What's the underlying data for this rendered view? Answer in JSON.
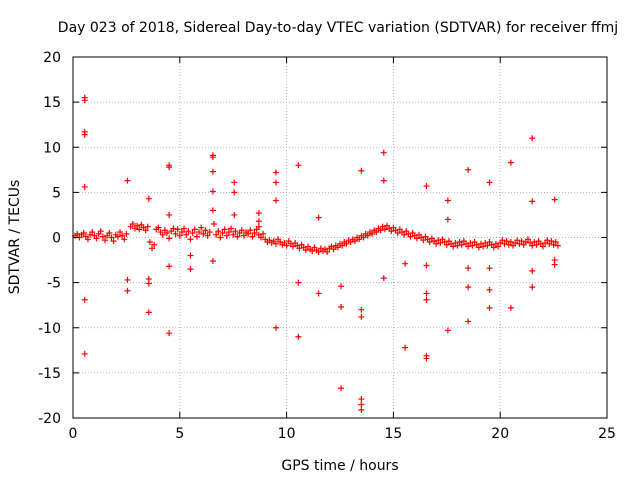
{
  "chart_data": {
    "type": "scatter",
    "title": "Day 023 of 2018, Sidereal Day-to-day VTEC variation (SDTVAR) for receiver ffmj",
    "xlabel": "GPS time / hours",
    "ylabel": "SDTVAR / TECUs",
    "xlim": [
      0,
      25
    ],
    "ylim": [
      -20,
      20
    ],
    "xticks": [
      0,
      5,
      10,
      15,
      20,
      25
    ],
    "xtick_labels": [
      "0",
      "5",
      "10",
      "15",
      "20",
      "25"
    ],
    "yticks": [
      -20,
      -15,
      -10,
      -5,
      0,
      5,
      10,
      15,
      20
    ],
    "ytick_labels": [
      "-20",
      "-15",
      "-10",
      "-5",
      "0",
      "5",
      "10",
      "15",
      "20"
    ],
    "grid": true,
    "marker": "plus",
    "marker_color": "#ff0000",
    "series": [
      {
        "name": "SDTVAR",
        "points": [
          [
            0.1,
            0.2
          ],
          [
            0.2,
            0.4
          ],
          [
            0.3,
            0.0
          ],
          [
            0.4,
            0.3
          ],
          [
            0.5,
            0.5
          ],
          [
            0.6,
            0.1
          ],
          [
            0.7,
            -0.2
          ],
          [
            0.8,
            0.3
          ],
          [
            0.9,
            0.6
          ],
          [
            1.0,
            0.2
          ],
          [
            1.1,
            -0.1
          ],
          [
            1.2,
            0.4
          ],
          [
            1.3,
            0.7
          ],
          [
            1.4,
            0.1
          ],
          [
            1.5,
            -0.3
          ],
          [
            1.6,
            0.2
          ],
          [
            1.7,
            0.5
          ],
          [
            1.8,
            0.0
          ],
          [
            1.9,
            -0.4
          ],
          [
            2.0,
            0.3
          ],
          [
            2.1,
            0.1
          ],
          [
            2.2,
            0.6
          ],
          [
            2.3,
            0.2
          ],
          [
            2.4,
            -0.2
          ],
          [
            2.5,
            0.4
          ],
          [
            2.7,
            1.2
          ],
          [
            2.8,
            1.5
          ],
          [
            2.9,
            1.0
          ],
          [
            3.0,
            1.3
          ],
          [
            3.1,
            0.9
          ],
          [
            3.2,
            1.4
          ],
          [
            3.3,
            1.1
          ],
          [
            3.4,
            0.8
          ],
          [
            3.5,
            1.2
          ],
          [
            3.6,
            -0.5
          ],
          [
            3.7,
            -1.2
          ],
          [
            3.8,
            -0.8
          ],
          [
            3.9,
            0.9
          ],
          [
            4.0,
            1.1
          ],
          [
            4.1,
            0.6
          ],
          [
            4.2,
            0.3
          ],
          [
            4.3,
            0.8
          ],
          [
            4.4,
            0.5
          ],
          [
            4.5,
            -0.1
          ],
          [
            4.6,
            0.7
          ],
          [
            4.7,
            1.0
          ],
          [
            4.8,
            0.4
          ],
          [
            4.9,
            0.9
          ],
          [
            5.0,
            0.2
          ],
          [
            5.1,
            0.6
          ],
          [
            5.2,
            1.0
          ],
          [
            5.3,
            0.3
          ],
          [
            5.4,
            0.7
          ],
          [
            5.5,
            -0.2
          ],
          [
            5.6,
            0.5
          ],
          [
            5.7,
            0.9
          ],
          [
            5.8,
            0.1
          ],
          [
            5.9,
            0.6
          ],
          [
            6.0,
            1.1
          ],
          [
            6.1,
            0.4
          ],
          [
            6.2,
            0.8
          ],
          [
            6.3,
            0.2
          ],
          [
            6.4,
            0.6
          ],
          [
            6.6,
            1.5
          ],
          [
            6.7,
            0.3
          ],
          [
            6.8,
            0.7
          ],
          [
            6.9,
            0.0
          ],
          [
            7.0,
            0.5
          ],
          [
            7.1,
            0.9
          ],
          [
            7.2,
            0.2
          ],
          [
            7.3,
            0.6
          ],
          [
            7.4,
            1.0
          ],
          [
            7.5,
            0.3
          ],
          [
            7.6,
            0.7
          ],
          [
            7.7,
            0.1
          ],
          [
            7.8,
            0.5
          ],
          [
            7.9,
            0.8
          ],
          [
            8.0,
            0.2
          ],
          [
            8.1,
            0.6
          ],
          [
            8.2,
            0.4
          ],
          [
            8.3,
            0.8
          ],
          [
            8.4,
            0.1
          ],
          [
            8.5,
            0.5
          ],
          [
            8.6,
            0.9
          ],
          [
            8.7,
            0.3
          ],
          [
            8.8,
            0.0
          ],
          [
            8.9,
            0.4
          ],
          [
            9.0,
            -0.2
          ],
          [
            9.1,
            -0.5
          ],
          [
            9.2,
            -0.3
          ],
          [
            9.3,
            -0.6
          ],
          [
            9.4,
            -0.4
          ],
          [
            9.5,
            -0.7
          ],
          [
            9.6,
            -0.2
          ],
          [
            9.7,
            -0.5
          ],
          [
            9.8,
            -0.8
          ],
          [
            9.9,
            -0.6
          ],
          [
            10.0,
            -0.9
          ],
          [
            10.1,
            -0.4
          ],
          [
            10.2,
            -0.7
          ],
          [
            10.3,
            -1.0
          ],
          [
            10.4,
            -0.6
          ],
          [
            10.5,
            -0.9
          ],
          [
            10.6,
            -1.2
          ],
          [
            10.7,
            -0.8
          ],
          [
            10.8,
            -1.1
          ],
          [
            10.9,
            -1.4
          ],
          [
            11.0,
            -1.0
          ],
          [
            11.1,
            -1.3
          ],
          [
            11.2,
            -1.5
          ],
          [
            11.3,
            -1.1
          ],
          [
            11.4,
            -1.4
          ],
          [
            11.5,
            -1.6
          ],
          [
            11.6,
            -1.2
          ],
          [
            11.7,
            -1.5
          ],
          [
            11.8,
            -1.3
          ],
          [
            11.9,
            -1.6
          ],
          [
            12.0,
            -1.2
          ],
          [
            12.1,
            -1.0
          ],
          [
            12.2,
            -1.3
          ],
          [
            12.3,
            -0.9
          ],
          [
            12.4,
            -1.1
          ],
          [
            12.5,
            -0.7
          ],
          [
            12.6,
            -0.9
          ],
          [
            12.7,
            -0.5
          ],
          [
            12.8,
            -0.7
          ],
          [
            12.9,
            -0.3
          ],
          [
            13.0,
            -0.5
          ],
          [
            13.1,
            -0.2
          ],
          [
            13.2,
            -0.4
          ],
          [
            13.3,
            0.0
          ],
          [
            13.4,
            -0.2
          ],
          [
            13.5,
            0.2
          ],
          [
            13.6,
            0.0
          ],
          [
            13.7,
            0.4
          ],
          [
            13.8,
            0.2
          ],
          [
            13.9,
            0.6
          ],
          [
            14.0,
            0.4
          ],
          [
            14.1,
            0.8
          ],
          [
            14.2,
            0.6
          ],
          [
            14.3,
            1.0
          ],
          [
            14.4,
            0.8
          ],
          [
            14.5,
            1.2
          ],
          [
            14.6,
            0.9
          ],
          [
            14.7,
            1.3
          ],
          [
            14.8,
            1.0
          ],
          [
            14.9,
            0.7
          ],
          [
            15.0,
            1.1
          ],
          [
            15.1,
            0.8
          ],
          [
            15.2,
            0.5
          ],
          [
            15.3,
            0.9
          ],
          [
            15.4,
            0.6
          ],
          [
            15.5,
            0.3
          ],
          [
            15.6,
            0.7
          ],
          [
            15.7,
            0.4
          ],
          [
            15.8,
            0.1
          ],
          [
            15.9,
            0.5
          ],
          [
            16.0,
            0.2
          ],
          [
            16.1,
            -0.1
          ],
          [
            16.2,
            0.3
          ],
          [
            16.3,
            0.0
          ],
          [
            16.4,
            -0.3
          ],
          [
            16.5,
            0.1
          ],
          [
            16.6,
            -0.2
          ],
          [
            16.7,
            -0.5
          ],
          [
            16.8,
            -0.1
          ],
          [
            16.9,
            -0.4
          ],
          [
            17.0,
            -0.7
          ],
          [
            17.1,
            -0.3
          ],
          [
            17.2,
            -0.6
          ],
          [
            17.3,
            -0.2
          ],
          [
            17.4,
            -0.5
          ],
          [
            17.5,
            -0.8
          ],
          [
            17.6,
            -0.4
          ],
          [
            17.7,
            -0.7
          ],
          [
            17.8,
            -1.0
          ],
          [
            17.9,
            -0.6
          ],
          [
            18.0,
            -0.9
          ],
          [
            18.1,
            -0.5
          ],
          [
            18.2,
            -0.8
          ],
          [
            18.3,
            -0.4
          ],
          [
            18.4,
            -0.7
          ],
          [
            18.5,
            -1.0
          ],
          [
            18.6,
            -0.6
          ],
          [
            18.7,
            -0.9
          ],
          [
            18.8,
            -0.5
          ],
          [
            18.9,
            -0.8
          ],
          [
            19.0,
            -1.1
          ],
          [
            19.1,
            -0.7
          ],
          [
            19.2,
            -1.0
          ],
          [
            19.3,
            -0.6
          ],
          [
            19.4,
            -0.9
          ],
          [
            19.5,
            -0.5
          ],
          [
            19.6,
            -0.8
          ],
          [
            19.7,
            -1.1
          ],
          [
            19.8,
            -0.7
          ],
          [
            19.9,
            -1.0
          ],
          [
            20.0,
            -0.6
          ],
          [
            20.1,
            -0.3
          ],
          [
            20.2,
            -0.7
          ],
          [
            20.3,
            -0.4
          ],
          [
            20.4,
            -0.8
          ],
          [
            20.5,
            -0.5
          ],
          [
            20.6,
            -0.9
          ],
          [
            20.7,
            -0.6
          ],
          [
            20.8,
            -0.3
          ],
          [
            20.9,
            -0.7
          ],
          [
            21.0,
            -0.4
          ],
          [
            21.1,
            -0.8
          ],
          [
            21.2,
            -0.5
          ],
          [
            21.3,
            -0.2
          ],
          [
            21.4,
            -0.6
          ],
          [
            21.5,
            -0.9
          ],
          [
            21.6,
            -0.5
          ],
          [
            21.7,
            -0.8
          ],
          [
            21.8,
            -0.4
          ],
          [
            21.9,
            -0.7
          ],
          [
            22.0,
            -1.0
          ],
          [
            22.1,
            -0.6
          ],
          [
            22.2,
            -0.3
          ],
          [
            22.3,
            -0.7
          ],
          [
            22.4,
            -0.4
          ],
          [
            22.5,
            -0.8
          ],
          [
            22.6,
            -0.5
          ],
          [
            22.7,
            -0.9
          ],
          [
            0.55,
            15.5
          ],
          [
            0.55,
            15.2
          ],
          [
            0.55,
            11.7
          ],
          [
            0.55,
            11.4
          ],
          [
            0.55,
            5.6
          ],
          [
            0.55,
            -6.9
          ],
          [
            0.55,
            -12.9
          ],
          [
            2.55,
            6.3
          ],
          [
            2.55,
            -4.7
          ],
          [
            2.55,
            -5.9
          ],
          [
            3.55,
            4.3
          ],
          [
            3.55,
            -4.6
          ],
          [
            3.55,
            -5.1
          ],
          [
            3.55,
            -8.3
          ],
          [
            4.5,
            8.0
          ],
          [
            4.5,
            7.8
          ],
          [
            4.5,
            2.5
          ],
          [
            4.5,
            -3.2
          ],
          [
            4.5,
            -10.6
          ],
          [
            5.5,
            -2.0
          ],
          [
            5.5,
            -3.5
          ],
          [
            6.55,
            9.1
          ],
          [
            6.55,
            8.9
          ],
          [
            6.55,
            7.3
          ],
          [
            6.55,
            5.1
          ],
          [
            6.55,
            3.0
          ],
          [
            6.55,
            -2.6
          ],
          [
            7.55,
            6.1
          ],
          [
            7.55,
            5.0
          ],
          [
            7.55,
            2.5
          ],
          [
            8.7,
            2.7
          ],
          [
            8.7,
            1.8
          ],
          [
            8.7,
            1.2
          ],
          [
            9.5,
            7.2
          ],
          [
            9.5,
            6.1
          ],
          [
            9.5,
            4.1
          ],
          [
            9.5,
            -10.0
          ],
          [
            10.55,
            8.0
          ],
          [
            10.55,
            -5.0
          ],
          [
            10.55,
            -11.0
          ],
          [
            11.5,
            2.2
          ],
          [
            11.5,
            -6.2
          ],
          [
            12.55,
            -5.4
          ],
          [
            12.55,
            -7.7
          ],
          [
            12.55,
            -16.7
          ],
          [
            13.5,
            7.4
          ],
          [
            13.5,
            -8.0
          ],
          [
            13.5,
            -8.8
          ],
          [
            13.5,
            -17.9
          ],
          [
            13.5,
            -18.5
          ],
          [
            13.5,
            -19.1
          ],
          [
            14.55,
            9.4
          ],
          [
            14.55,
            6.3
          ],
          [
            14.55,
            -4.5
          ],
          [
            15.55,
            -2.9
          ],
          [
            15.55,
            -12.2
          ],
          [
            16.55,
            5.7
          ],
          [
            16.55,
            -3.1
          ],
          [
            16.55,
            -6.2
          ],
          [
            16.55,
            -6.9
          ],
          [
            16.55,
            -13.1
          ],
          [
            16.55,
            -13.4
          ],
          [
            17.55,
            4.1
          ],
          [
            17.55,
            2.0
          ],
          [
            17.55,
            -10.3
          ],
          [
            18.5,
            7.5
          ],
          [
            18.5,
            -3.4
          ],
          [
            18.5,
            -5.5
          ],
          [
            18.5,
            -9.3
          ],
          [
            19.5,
            6.1
          ],
          [
            19.5,
            -3.4
          ],
          [
            19.5,
            -5.8
          ],
          [
            19.5,
            -7.8
          ],
          [
            20.5,
            8.3
          ],
          [
            20.5,
            -7.8
          ],
          [
            21.5,
            11.0
          ],
          [
            21.5,
            4.0
          ],
          [
            21.5,
            -3.7
          ],
          [
            21.5,
            -5.5
          ],
          [
            22.55,
            4.2
          ],
          [
            22.55,
            -2.5
          ],
          [
            22.55,
            -3.0
          ]
        ]
      }
    ]
  }
}
